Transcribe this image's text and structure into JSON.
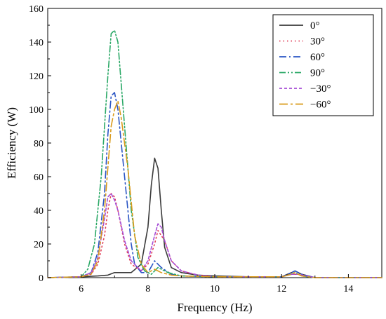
{
  "chart_data": {
    "type": "line",
    "xlabel": "Frequency (Hz)",
    "ylabel": "Efficiency (W)",
    "xlim": [
      5,
      15
    ],
    "ylim": [
      0,
      160
    ],
    "xticks": [
      "6",
      "8",
      "10",
      "12",
      "14"
    ],
    "xtick_values": [
      6,
      8,
      10,
      12,
      14
    ],
    "yticks": [
      "0",
      "20",
      "40",
      "60",
      "80",
      "100",
      "120",
      "140",
      "160"
    ],
    "ytick_values": [
      0,
      20,
      40,
      60,
      80,
      100,
      120,
      140,
      160
    ],
    "grid": false,
    "legend_position": "top-right",
    "series": [
      {
        "name": "0°",
        "color": "#3a3a3a",
        "dash": "solid",
        "x": [
          5,
          6,
          6.5,
          6.8,
          7.0,
          7.2,
          7.5,
          7.8,
          8.0,
          8.1,
          8.2,
          8.3,
          8.4,
          8.5,
          8.7,
          9.0,
          9.5,
          10,
          11,
          12,
          12.3,
          12.4,
          12.6,
          13,
          15
        ],
        "y": [
          0,
          0.5,
          1,
          1.5,
          3,
          3,
          3,
          8,
          30,
          55,
          71,
          65,
          40,
          18,
          6,
          3,
          1.5,
          1,
          0.5,
          0.5,
          3,
          4,
          2,
          0,
          0
        ]
      },
      {
        "name": "30°",
        "color": "#e0405a",
        "dash": "dotted",
        "x": [
          5,
          6,
          6.3,
          6.5,
          6.7,
          6.8,
          6.9,
          7.0,
          7.1,
          7.3,
          7.5,
          7.8,
          8.0,
          8.2,
          8.3,
          8.5,
          8.7,
          9.0,
          9.5,
          10,
          11,
          12,
          12.3,
          12.5,
          13,
          15
        ],
        "y": [
          0,
          0.5,
          2,
          8,
          25,
          40,
          50,
          48,
          40,
          20,
          8,
          4,
          8,
          20,
          28,
          22,
          10,
          4,
          1.5,
          0.5,
          0.5,
          0.5,
          2,
          2,
          0,
          0
        ]
      },
      {
        "name": "60°",
        "color": "#2a55c4",
        "dash": "dashdot",
        "x": [
          5,
          6,
          6.3,
          6.5,
          6.7,
          6.8,
          6.9,
          7.0,
          7.1,
          7.3,
          7.5,
          7.6,
          7.8,
          8.0,
          8.2,
          8.4,
          8.7,
          9.0,
          10,
          11,
          12,
          12.3,
          12.4,
          12.6,
          13,
          15
        ],
        "y": [
          0,
          0.5,
          3,
          15,
          50,
          85,
          108,
          110,
          100,
          60,
          20,
          8,
          3,
          3,
          10,
          6,
          2,
          1,
          0.5,
          0.5,
          0.5,
          3,
          4,
          2,
          0,
          0
        ]
      },
      {
        "name": "90°",
        "color": "#2aa866",
        "dash": "dashdotdot",
        "x": [
          5,
          6,
          6.2,
          6.4,
          6.6,
          6.8,
          6.9,
          7.0,
          7.1,
          7.3,
          7.5,
          7.7,
          7.9,
          8.1,
          8.3,
          8.6,
          9.0,
          10,
          11,
          12,
          12.3,
          12.4,
          12.6,
          13,
          15
        ],
        "y": [
          0,
          0.5,
          5,
          20,
          60,
          120,
          145,
          147,
          140,
          90,
          40,
          12,
          4,
          2,
          6,
          3,
          1,
          0.5,
          0.5,
          0.5,
          2,
          3,
          1,
          0,
          0
        ]
      },
      {
        "name": "−30°",
        "color": "#a64cd6",
        "dash": "shortdash",
        "x": [
          5,
          6,
          6.3,
          6.5,
          6.7,
          6.8,
          6.9,
          7.0,
          7.1,
          7.3,
          7.5,
          7.8,
          8.0,
          8.2,
          8.3,
          8.4,
          8.5,
          8.7,
          9.0,
          9.5,
          10,
          11,
          12,
          12.3,
          12.5,
          13,
          15
        ],
        "y": [
          0,
          0.5,
          3,
          12,
          35,
          48,
          50,
          46,
          40,
          22,
          10,
          4,
          10,
          25,
          32,
          30,
          22,
          10,
          4,
          1.5,
          0.5,
          0.5,
          0.5,
          2,
          2,
          0,
          0
        ]
      },
      {
        "name": "−60°",
        "color": "#d99a1a",
        "dash": "longdashdot",
        "x": [
          5,
          6,
          6.3,
          6.5,
          6.7,
          6.9,
          7.0,
          7.1,
          7.2,
          7.4,
          7.6,
          7.8,
          8.0,
          8.2,
          8.4,
          8.7,
          9.0,
          10,
          11,
          12,
          12.3,
          12.4,
          12.6,
          13,
          15
        ],
        "y": [
          0,
          0.5,
          2,
          10,
          40,
          90,
          100,
          105,
          95,
          65,
          25,
          8,
          3,
          5,
          3,
          1.5,
          1,
          0.5,
          0.5,
          0.5,
          2,
          3,
          1,
          0,
          0
        ]
      }
    ]
  }
}
